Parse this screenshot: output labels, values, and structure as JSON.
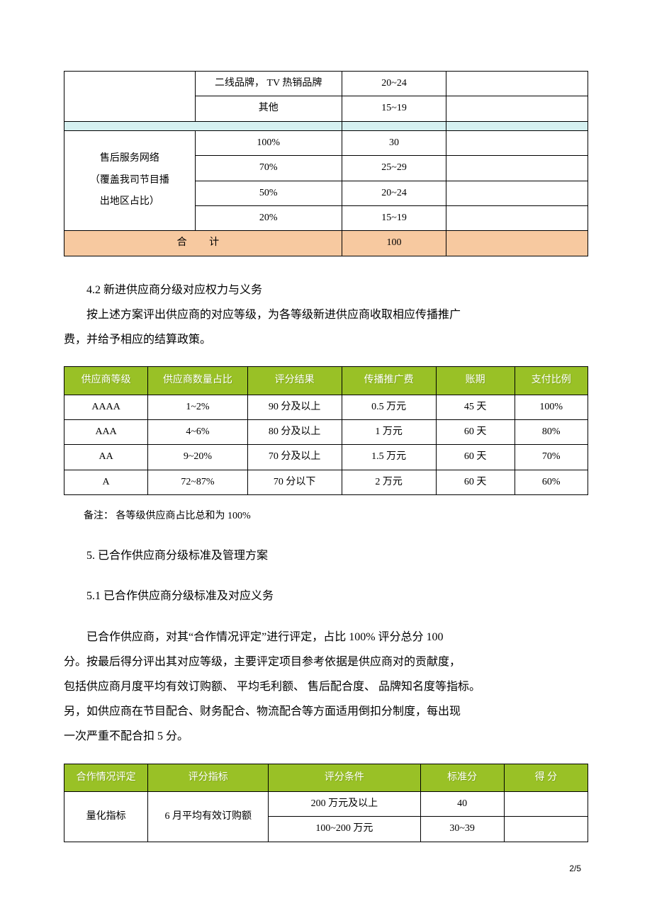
{
  "table1": {
    "rows_top": [
      {
        "col2": "二线品牌，   TV 热销品牌",
        "col3": "20~24"
      },
      {
        "col2": "其他",
        "col3": "15~19"
      }
    ],
    "section_label": "售后服务网络\n（覆盖我司节目播\n出地区占比）",
    "rows_bottom": [
      {
        "col2": "100%",
        "col3": "30"
      },
      {
        "col2": "70%",
        "col3": "25~29"
      },
      {
        "col2": "50%",
        "col3": "20~24"
      },
      {
        "col2": "20%",
        "col3": "15~19"
      }
    ],
    "total_label": "合   计",
    "total_value": "100"
  },
  "section42": {
    "heading": "4.2    新进供应商分级对应权力与义务",
    "para1": "按上述方案评出供应商的对应等级，为各等级新进供应商收取相应传播推广",
    "para2": "费，并给予相应的结算政策。"
  },
  "table2": {
    "headers": [
      "供应商等级",
      "供应商数量占比",
      "评分结果",
      "传播推广费",
      "账期",
      "支付比例"
    ],
    "rows": [
      [
        "AAAA",
        "1~2%",
        "90 分及以上",
        "0.5  万元",
        "45 天",
        "100%"
      ],
      [
        "AAA",
        "4~6%",
        "80 分及以上",
        "1 万元",
        "60 天",
        "80%"
      ],
      [
        "AA",
        "9~20%",
        "70 分及以上",
        "1.5  万元",
        "60 天",
        "70%"
      ],
      [
        "A",
        "72~87%",
        "70 分以下",
        "2 万元",
        "60 天",
        "60%"
      ]
    ],
    "note": "备注：  各等级供应商占比总和为     100%"
  },
  "section5": {
    "heading": "5.    已合作供应商分级标准及管理方案",
    "sub_heading": "5.1  已合作供应商分级标准及对应义务",
    "p1": "已合作供应商，对其“合作情况评定”进行评定，占比      100%  评分总分  100",
    "p2": "分。按最后得分评出其对应等级，主要评定项目参考依据是供应商对的贡献度，",
    "p3": "包括供应商月度平均有效订购额、  平均毛利额、 售后配合度、 品牌知名度等指标。",
    "p4": "另，如供应商在节目配合、财务配合、物流配合等方面适用倒扣分制度，每出现",
    "p5": "一次严重不配合扣   5 分。"
  },
  "table3": {
    "headers": [
      "合作情况评定",
      "评分指标",
      "评分条件",
      "标准分",
      "得  分"
    ],
    "row_label1": "量化指标",
    "row_label2": "6 月平均有效订购额",
    "rows": [
      {
        "cond": "200 万元及以上",
        "score": "40"
      },
      {
        "cond": "100~200 万元",
        "score": "30~39"
      }
    ]
  },
  "page_num": "2/5",
  "colors": {
    "cyan": "#d5f0f0",
    "orange": "#f7c9a0",
    "green": "#99c126",
    "white": "#ffffff",
    "black": "#000000"
  }
}
